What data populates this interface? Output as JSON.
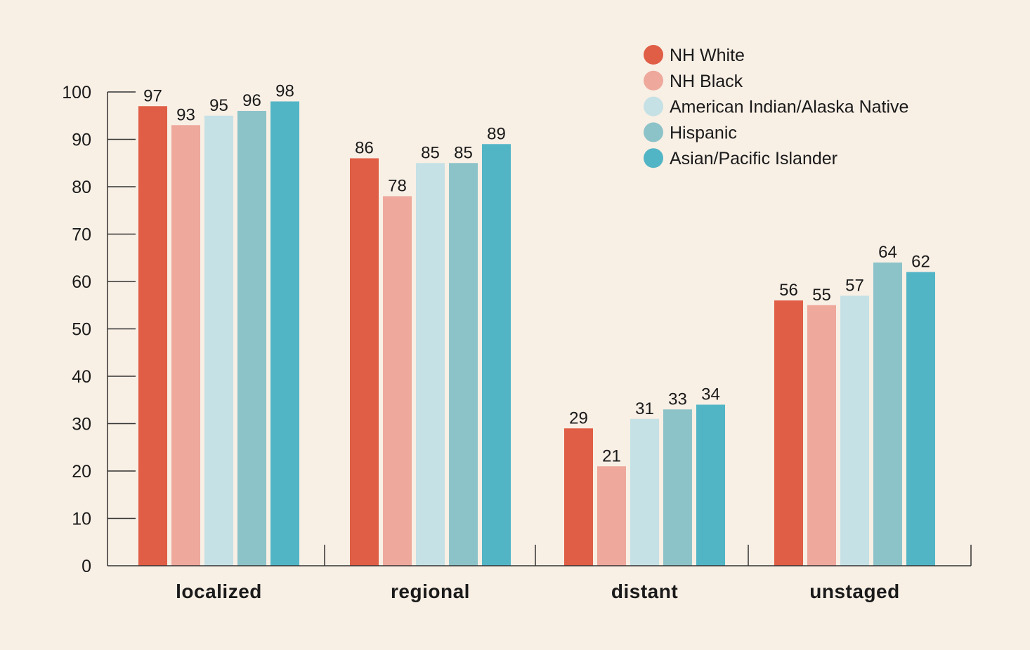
{
  "chart_data": {
    "type": "bar",
    "categories": [
      "localized",
      "regional",
      "distant",
      "unstaged"
    ],
    "series": [
      {
        "name": "NH White",
        "color": "#df5e45",
        "values": [
          97,
          86,
          29,
          56
        ]
      },
      {
        "name": "NH Black",
        "color": "#eea89c",
        "values": [
          93,
          78,
          21,
          55
        ]
      },
      {
        "name": "American Indian/Alaska Native",
        "color": "#c5e1e5",
        "values": [
          95,
          85,
          31,
          57
        ]
      },
      {
        "name": "Hispanic",
        "color": "#8cc3c9",
        "values": [
          96,
          85,
          33,
          64
        ]
      },
      {
        "name": "Asian/Pacific Islander",
        "color": "#52b5c6",
        "values": [
          98,
          89,
          34,
          62
        ]
      }
    ],
    "ylim": [
      0,
      100
    ],
    "yticks": [
      0,
      10,
      20,
      30,
      40,
      50,
      60,
      70,
      80,
      90,
      100
    ],
    "legend_position": "top-right",
    "grid": false
  }
}
